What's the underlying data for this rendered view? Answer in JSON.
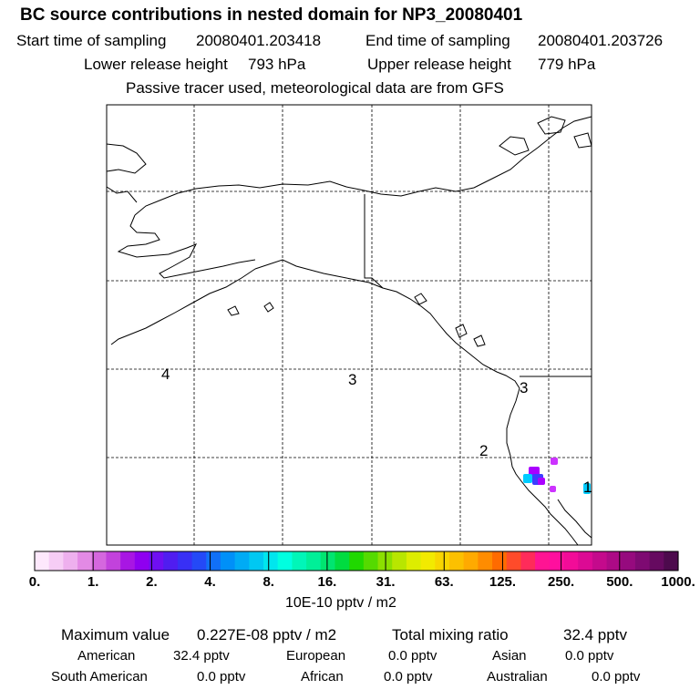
{
  "title": "BC  source contributions in nested domain for NP3_20080401",
  "header": {
    "start_label": "Start time of sampling",
    "start_value": "20080401.203418",
    "end_label": "End time of sampling",
    "end_value": "20080401.203726",
    "lower_label": "Lower release height",
    "lower_value": "793 hPa",
    "upper_label": "Upper release height",
    "upper_value": "779 hPa",
    "tracer_note": "Passive tracer used, meteorological data are from GFS"
  },
  "map": {
    "region_labels": [
      "4",
      "3",
      "3",
      "2",
      "1"
    ],
    "plume_colors": [
      "#aa00ff",
      "#3d3dff",
      "#00ccff",
      "#cc33ff"
    ]
  },
  "colorbar": {
    "tick_labels": [
      "0.",
      "1.",
      "2.",
      "4.",
      "8.",
      "16.",
      "31.",
      "63.",
      "125.",
      "250.",
      "500.",
      "1000."
    ],
    "colors": [
      "#fde8fc",
      "#f6cdf5",
      "#eeb0ee",
      "#e38ae5",
      "#d567de",
      "#c242dc",
      "#a816e3",
      "#8f00f0",
      "#6f0ff2",
      "#501df0",
      "#3830f5",
      "#2449f7",
      "#1170f7",
      "#0090f8",
      "#00abf5",
      "#00c8f2",
      "#00e6ee",
      "#00ffe0",
      "#00f6b8",
      "#00ef98",
      "#00e570",
      "#00dc40",
      "#20d800",
      "#55da00",
      "#8be000",
      "#b8e600",
      "#dded00",
      "#f2ea00",
      "#f8d600",
      "#fcc000",
      "#ffaa00",
      "#ff8c00",
      "#ff6b00",
      "#ff4b2a",
      "#ff2b5a",
      "#ff1493",
      "#ff0f9e",
      "#f20c98",
      "#dc0a94",
      "#c40a8c",
      "#ad0a86",
      "#960a7e",
      "#7e0a72",
      "#660a60",
      "#4d0a4d"
    ],
    "units": "10E-10 pptv / m2"
  },
  "summary": {
    "max_label": "Maximum value",
    "max_value": "0.227E-08 pptv / m2",
    "total_label": "Total mixing ratio",
    "total_value": "32.4 pptv",
    "sources": [
      {
        "name": "American",
        "value": "32.4 pptv"
      },
      {
        "name": "European",
        "value": "0.0 pptv"
      },
      {
        "name": "Asian",
        "value": "0.0 pptv"
      },
      {
        "name": "South American",
        "value": "0.0 pptv"
      },
      {
        "name": "African",
        "value": "0.0 pptv"
      },
      {
        "name": "Australian",
        "value": "0.0 pptv"
      }
    ]
  }
}
